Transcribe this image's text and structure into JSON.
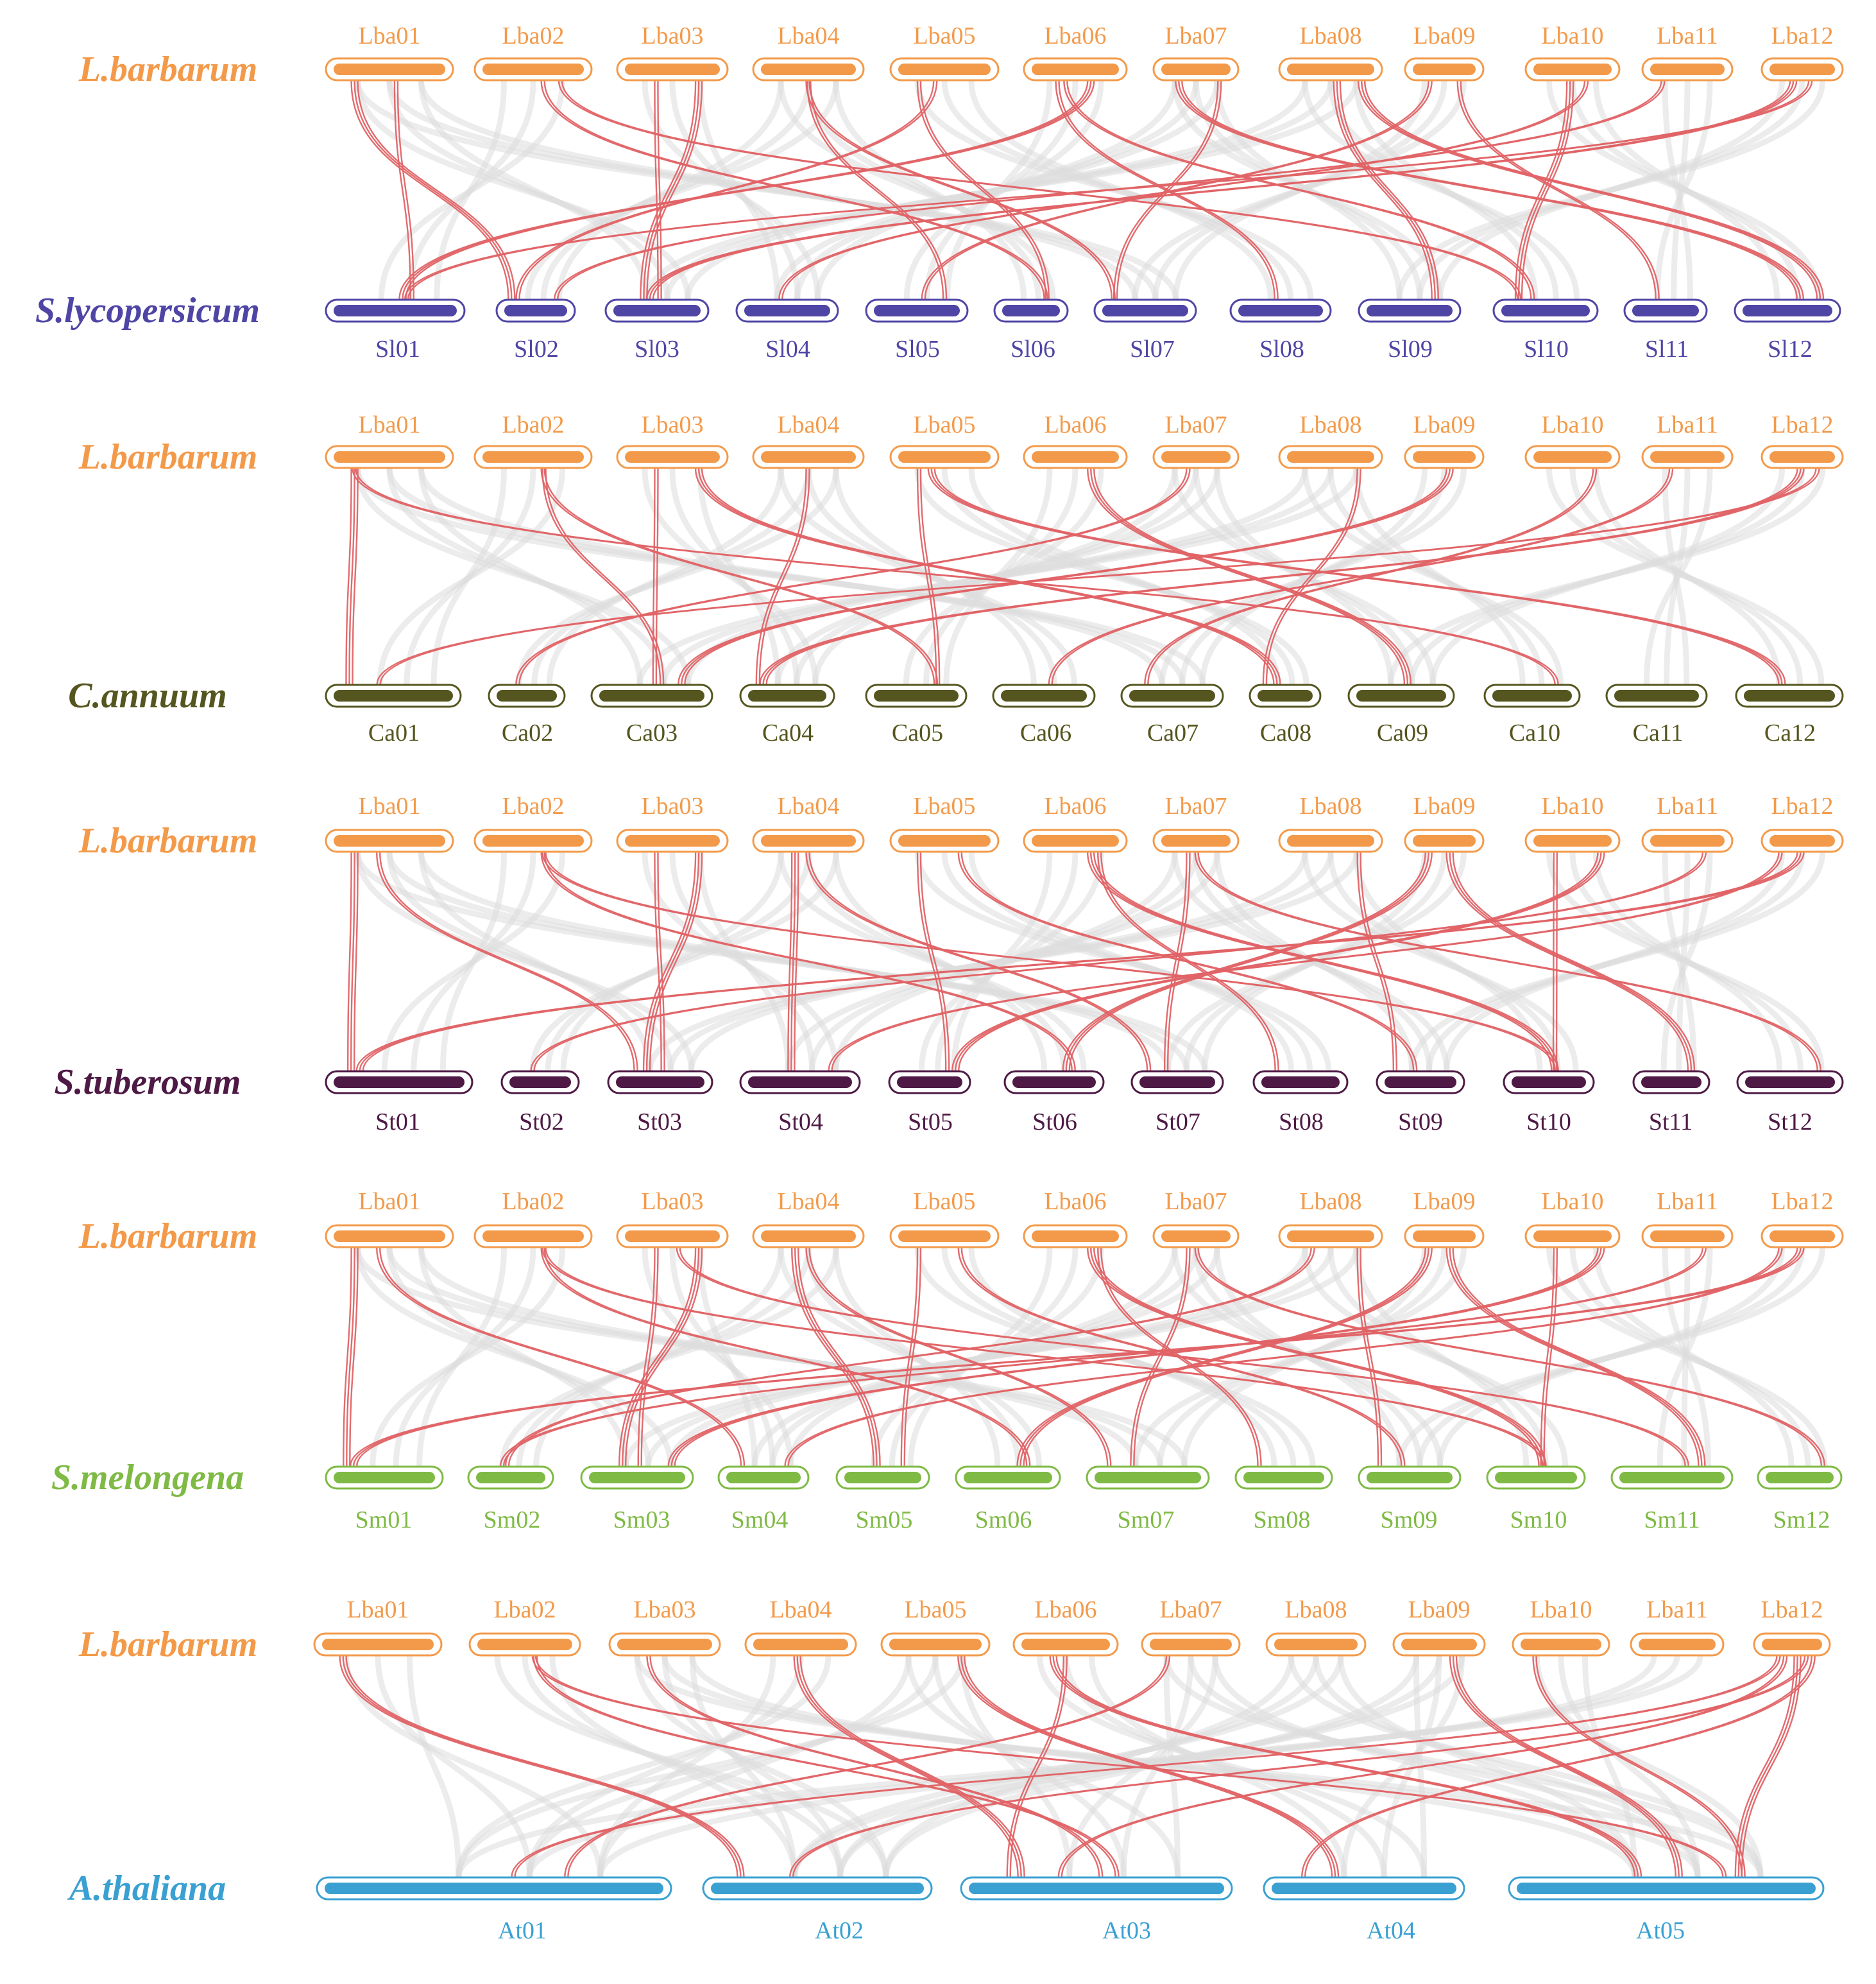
{
  "figure": "Synteny plot: L.barbarum vs five species",
  "colors": {
    "lba": "#f39a4a",
    "link_highlight": "#e06366",
    "link_background": "#dcdcdc"
  },
  "panels": [
    {
      "top_species": "L.barbarum",
      "bottom_species": "S.lycopersicum",
      "bottom_color": "#4f45a5",
      "top_chroms": [
        "Lba01",
        "Lba02",
        "Lba03",
        "Lba04",
        "Lba05",
        "Lba06",
        "Lba07",
        "Lba08",
        "Lba09",
        "Lba10",
        "Lba11",
        "Lba12"
      ],
      "bottom_chroms": [
        "Sl01",
        "Sl02",
        "Sl03",
        "Sl04",
        "Sl05",
        "Sl06",
        "Sl07",
        "Sl08",
        "Sl09",
        "Sl10",
        "Sl11",
        "Sl12"
      ]
    },
    {
      "top_species": "L.barbarum",
      "bottom_species": "C.annuum",
      "bottom_color": "#55561f",
      "top_chroms": [
        "Lba01",
        "Lba02",
        "Lba03",
        "Lba04",
        "Lba05",
        "Lba06",
        "Lba07",
        "Lba08",
        "Lba09",
        "Lba10",
        "Lba11",
        "Lba12"
      ],
      "bottom_chroms": [
        "Ca01",
        "Ca02",
        "Ca03",
        "Ca04",
        "Ca05",
        "Ca06",
        "Ca07",
        "Ca08",
        "Ca09",
        "Ca10",
        "Ca11",
        "Ca12"
      ]
    },
    {
      "top_species": "L.barbarum",
      "bottom_species": "S.tuberosum",
      "bottom_color": "#4e1a45",
      "top_chroms": [
        "Lba01",
        "Lba02",
        "Lba03",
        "Lba04",
        "Lba05",
        "Lba06",
        "Lba07",
        "Lba08",
        "Lba09",
        "Lba10",
        "Lba11",
        "Lba12"
      ],
      "bottom_chroms": [
        "St01",
        "St02",
        "St03",
        "St04",
        "St05",
        "St06",
        "St07",
        "St08",
        "St09",
        "St10",
        "St11",
        "St12"
      ]
    },
    {
      "top_species": "L.barbarum",
      "bottom_species": "S.melongena",
      "bottom_color": "#7fba45",
      "top_chroms": [
        "Lba01",
        "Lba02",
        "Lba03",
        "Lba04",
        "Lba05",
        "Lba06",
        "Lba07",
        "Lba08",
        "Lba09",
        "Lba10",
        "Lba11",
        "Lba12"
      ],
      "bottom_chroms": [
        "Sm01",
        "Sm02",
        "Sm03",
        "Sm04",
        "Sm05",
        "Sm06",
        "Sm07",
        "Sm08",
        "Sm09",
        "Sm10",
        "Sm11",
        "Sm12"
      ]
    },
    {
      "top_species": "L.barbarum",
      "bottom_species": "A.thaliana",
      "bottom_color": "#3aa0d2",
      "top_chroms": [
        "Lba01",
        "Lba02",
        "Lba03",
        "Lba04",
        "Lba05",
        "Lba06",
        "Lba07",
        "Lba08",
        "Lba09",
        "Lba10",
        "Lba11",
        "Lba12"
      ],
      "bottom_chroms": [
        "At01",
        "At02",
        "At03",
        "At04",
        "At05"
      ]
    }
  ],
  "red_links": [
    [
      [
        0,
        1
      ],
      [
        1,
        5
      ],
      [
        2,
        2
      ],
      [
        2,
        2
      ],
      [
        3,
        6
      ],
      [
        4,
        5
      ],
      [
        5,
        0
      ],
      [
        5,
        9
      ],
      [
        6,
        6
      ],
      [
        7,
        8
      ],
      [
        8,
        4
      ],
      [
        8,
        10
      ],
      [
        9,
        9
      ],
      [
        10,
        1
      ],
      [
        11,
        0
      ],
      [
        11,
        2
      ],
      [
        1,
        9
      ],
      [
        3,
        4
      ],
      [
        6,
        11
      ],
      [
        9,
        3
      ],
      [
        4,
        1
      ],
      [
        7,
        11
      ],
      [
        0,
        0
      ],
      [
        5,
        7
      ]
    ],
    [
      [
        0,
        0
      ],
      [
        1,
        4
      ],
      [
        2,
        2
      ],
      [
        2,
        7
      ],
      [
        3,
        3
      ],
      [
        4,
        4
      ],
      [
        5,
        8
      ],
      [
        6,
        1
      ],
      [
        7,
        7
      ],
      [
        8,
        2
      ],
      [
        10,
        5
      ],
      [
        11,
        0
      ],
      [
        11,
        3
      ],
      [
        0,
        9
      ],
      [
        1,
        2
      ],
      [
        4,
        11
      ],
      [
        9,
        6
      ]
    ],
    [
      [
        0,
        0
      ],
      [
        1,
        5
      ],
      [
        2,
        2
      ],
      [
        2,
        2
      ],
      [
        3,
        6
      ],
      [
        4,
        4
      ],
      [
        5,
        9
      ],
      [
        6,
        6
      ],
      [
        7,
        8
      ],
      [
        8,
        10
      ],
      [
        9,
        9
      ],
      [
        10,
        1
      ],
      [
        11,
        0
      ],
      [
        11,
        3
      ],
      [
        1,
        9
      ],
      [
        3,
        3
      ],
      [
        5,
        7
      ],
      [
        6,
        11
      ],
      [
        8,
        5
      ],
      [
        4,
        8
      ],
      [
        0,
        2
      ],
      [
        9,
        4
      ]
    ],
    [
      [
        0,
        0
      ],
      [
        1,
        5
      ],
      [
        2,
        2
      ],
      [
        2,
        2
      ],
      [
        3,
        6
      ],
      [
        4,
        4
      ],
      [
        5,
        9
      ],
      [
        6,
        6
      ],
      [
        7,
        8
      ],
      [
        8,
        10
      ],
      [
        9,
        9
      ],
      [
        10,
        1
      ],
      [
        11,
        0
      ],
      [
        11,
        3
      ],
      [
        1,
        9
      ],
      [
        3,
        4
      ],
      [
        5,
        7
      ],
      [
        6,
        11
      ],
      [
        8,
        5
      ],
      [
        4,
        8
      ],
      [
        0,
        3
      ],
      [
        9,
        2
      ],
      [
        2,
        10
      ],
      [
        7,
        1
      ]
    ],
    [
      [
        0,
        1
      ],
      [
        1,
        4
      ],
      [
        2,
        2
      ],
      [
        4,
        3
      ],
      [
        5,
        2
      ],
      [
        6,
        0
      ],
      [
        8,
        4
      ],
      [
        11,
        2
      ],
      [
        11,
        3
      ],
      [
        11,
        4
      ],
      [
        11,
        0
      ],
      [
        11,
        1
      ],
      [
        3,
        2
      ],
      [
        9,
        4
      ],
      [
        1,
        2
      ],
      [
        5,
        4
      ]
    ]
  ],
  "grey_links": [
    [
      [
        0,
        2
      ],
      [
        1,
        0
      ],
      [
        2,
        3
      ],
      [
        3,
        5
      ],
      [
        4,
        7
      ],
      [
        5,
        4
      ],
      [
        6,
        8
      ],
      [
        7,
        9
      ],
      [
        8,
        6
      ],
      [
        9,
        11
      ],
      [
        10,
        10
      ],
      [
        11,
        8
      ],
      [
        3,
        1
      ],
      [
        0,
        6
      ],
      [
        6,
        3
      ],
      [
        7,
        2
      ]
    ],
    [
      [
        0,
        2
      ],
      [
        1,
        0
      ],
      [
        2,
        3
      ],
      [
        3,
        5
      ],
      [
        4,
        7
      ],
      [
        5,
        4
      ],
      [
        6,
        8
      ],
      [
        7,
        9
      ],
      [
        8,
        6
      ],
      [
        9,
        11
      ],
      [
        10,
        10
      ],
      [
        11,
        8
      ],
      [
        3,
        1
      ],
      [
        0,
        6
      ],
      [
        6,
        3
      ],
      [
        7,
        2
      ]
    ],
    [
      [
        0,
        2
      ],
      [
        1,
        0
      ],
      [
        2,
        3
      ],
      [
        3,
        5
      ],
      [
        4,
        7
      ],
      [
        5,
        4
      ],
      [
        6,
        8
      ],
      [
        7,
        9
      ],
      [
        8,
        6
      ],
      [
        9,
        11
      ],
      [
        10,
        10
      ],
      [
        11,
        8
      ],
      [
        3,
        1
      ],
      [
        0,
        6
      ],
      [
        6,
        3
      ],
      [
        7,
        2
      ]
    ],
    [
      [
        0,
        2
      ],
      [
        1,
        0
      ],
      [
        2,
        3
      ],
      [
        3,
        5
      ],
      [
        4,
        7
      ],
      [
        5,
        4
      ],
      [
        6,
        8
      ],
      [
        7,
        9
      ],
      [
        8,
        6
      ],
      [
        9,
        11
      ],
      [
        10,
        10
      ],
      [
        11,
        8
      ],
      [
        3,
        1
      ],
      [
        0,
        6
      ],
      [
        6,
        3
      ],
      [
        7,
        2
      ]
    ],
    [
      [
        0,
        0
      ],
      [
        1,
        1
      ],
      [
        2,
        1
      ],
      [
        3,
        0
      ],
      [
        4,
        2
      ],
      [
        5,
        3
      ],
      [
        6,
        2
      ],
      [
        7,
        4
      ],
      [
        8,
        3
      ],
      [
        9,
        4
      ],
      [
        10,
        0
      ],
      [
        2,
        4
      ],
      [
        7,
        1
      ],
      [
        4,
        0
      ],
      [
        6,
        4
      ],
      [
        8,
        1
      ]
    ]
  ]
}
